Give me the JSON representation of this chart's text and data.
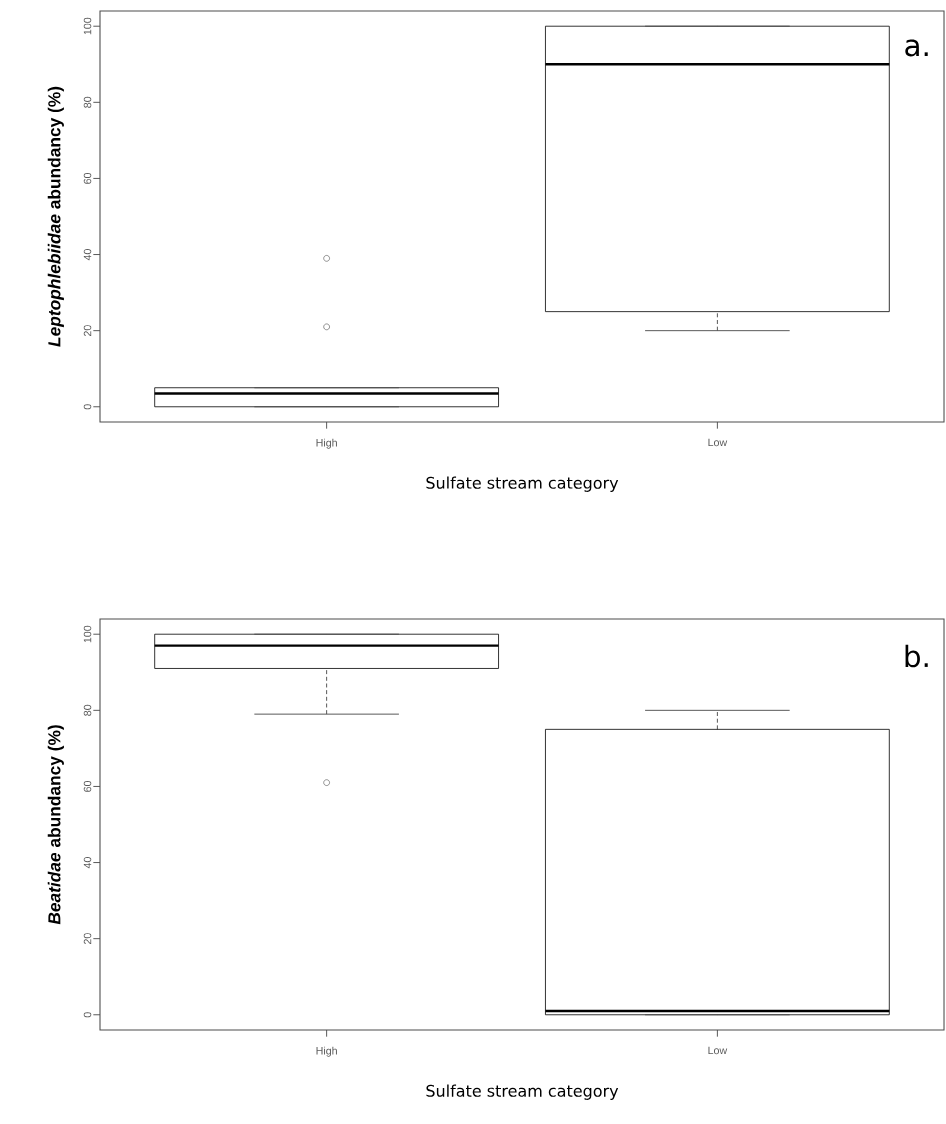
{
  "chart_data": [
    {
      "type": "box",
      "categories": [
        "High",
        "Low"
      ],
      "xlabel": "Sulfate stream category",
      "ylabel": "*Leptophlebiidae* abundancy (%)",
      "ylim": [
        -4,
        104
      ],
      "yticks": [
        0,
        20,
        40,
        60,
        80,
        100
      ],
      "annotations": [
        "a."
      ],
      "boxes": [
        {
          "low": 0,
          "q1": 0,
          "median": 3.5,
          "q3": 5,
          "high": 5,
          "outliers": [
            39,
            21
          ]
        },
        {
          "low": 20,
          "q1": 25,
          "median": 90,
          "q3": 100,
          "high": 100
        }
      ]
    },
    {
      "type": "box",
      "categories": [
        "High",
        "Low"
      ],
      "xlabel": "Sulfate stream category",
      "ylabel": "*Beatidae* abundancy (%)",
      "ylim": [
        -4,
        104
      ],
      "yticks": [
        0,
        20,
        40,
        60,
        80,
        100
      ],
      "annotations": [
        "b."
      ],
      "boxes": [
        {
          "low": 79,
          "q1": 91,
          "median": 97,
          "q3": 100,
          "high": 100,
          "outliers": [
            61
          ]
        },
        {
          "low": 0,
          "q1": 0,
          "median": 1,
          "q3": 75,
          "high": 80
        }
      ]
    }
  ]
}
